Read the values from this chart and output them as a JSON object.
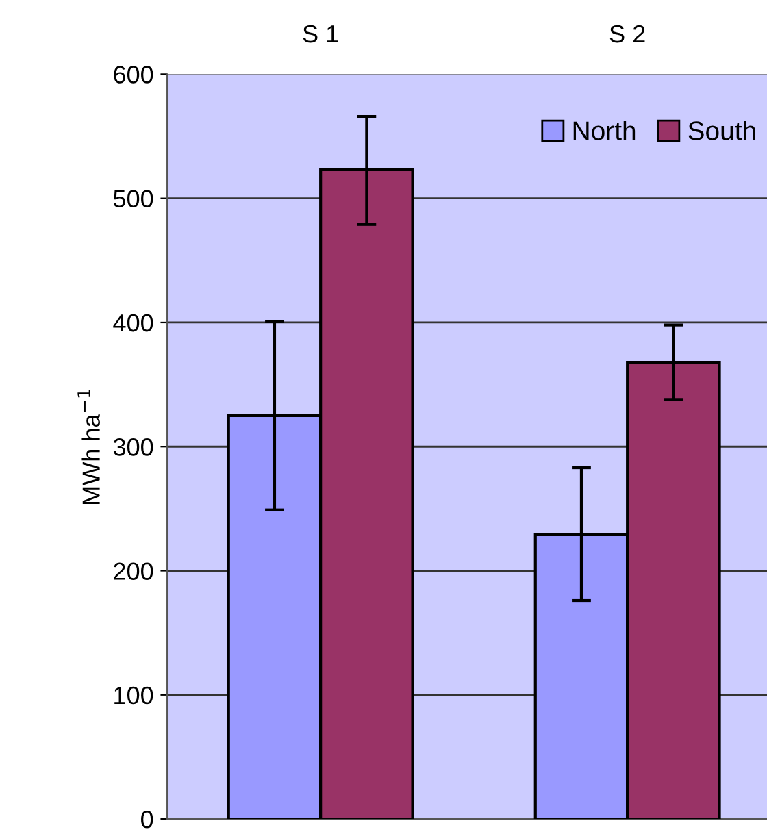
{
  "chart_data": {
    "type": "bar",
    "categories": [
      "S 1",
      "S 2"
    ],
    "ylabel": "MWh ha$^{−1}$",
    "series": [
      {
        "name": "North",
        "color": "#9999ff",
        "values": [
          325,
          229
        ],
        "errors": [
          [
            249,
            401
          ],
          [
            176,
            283
          ]
        ]
      },
      {
        "name": "South",
        "color": "#993366",
        "values": [
          523,
          368
        ],
        "errors": [
          [
            479,
            566
          ],
          [
            338,
            398
          ]
        ]
      }
    ],
    "ylim": [
      0,
      600
    ],
    "yticks": [
      0,
      100,
      200,
      300,
      400,
      500,
      600
    ],
    "grid": "y",
    "legend": "top right"
  }
}
